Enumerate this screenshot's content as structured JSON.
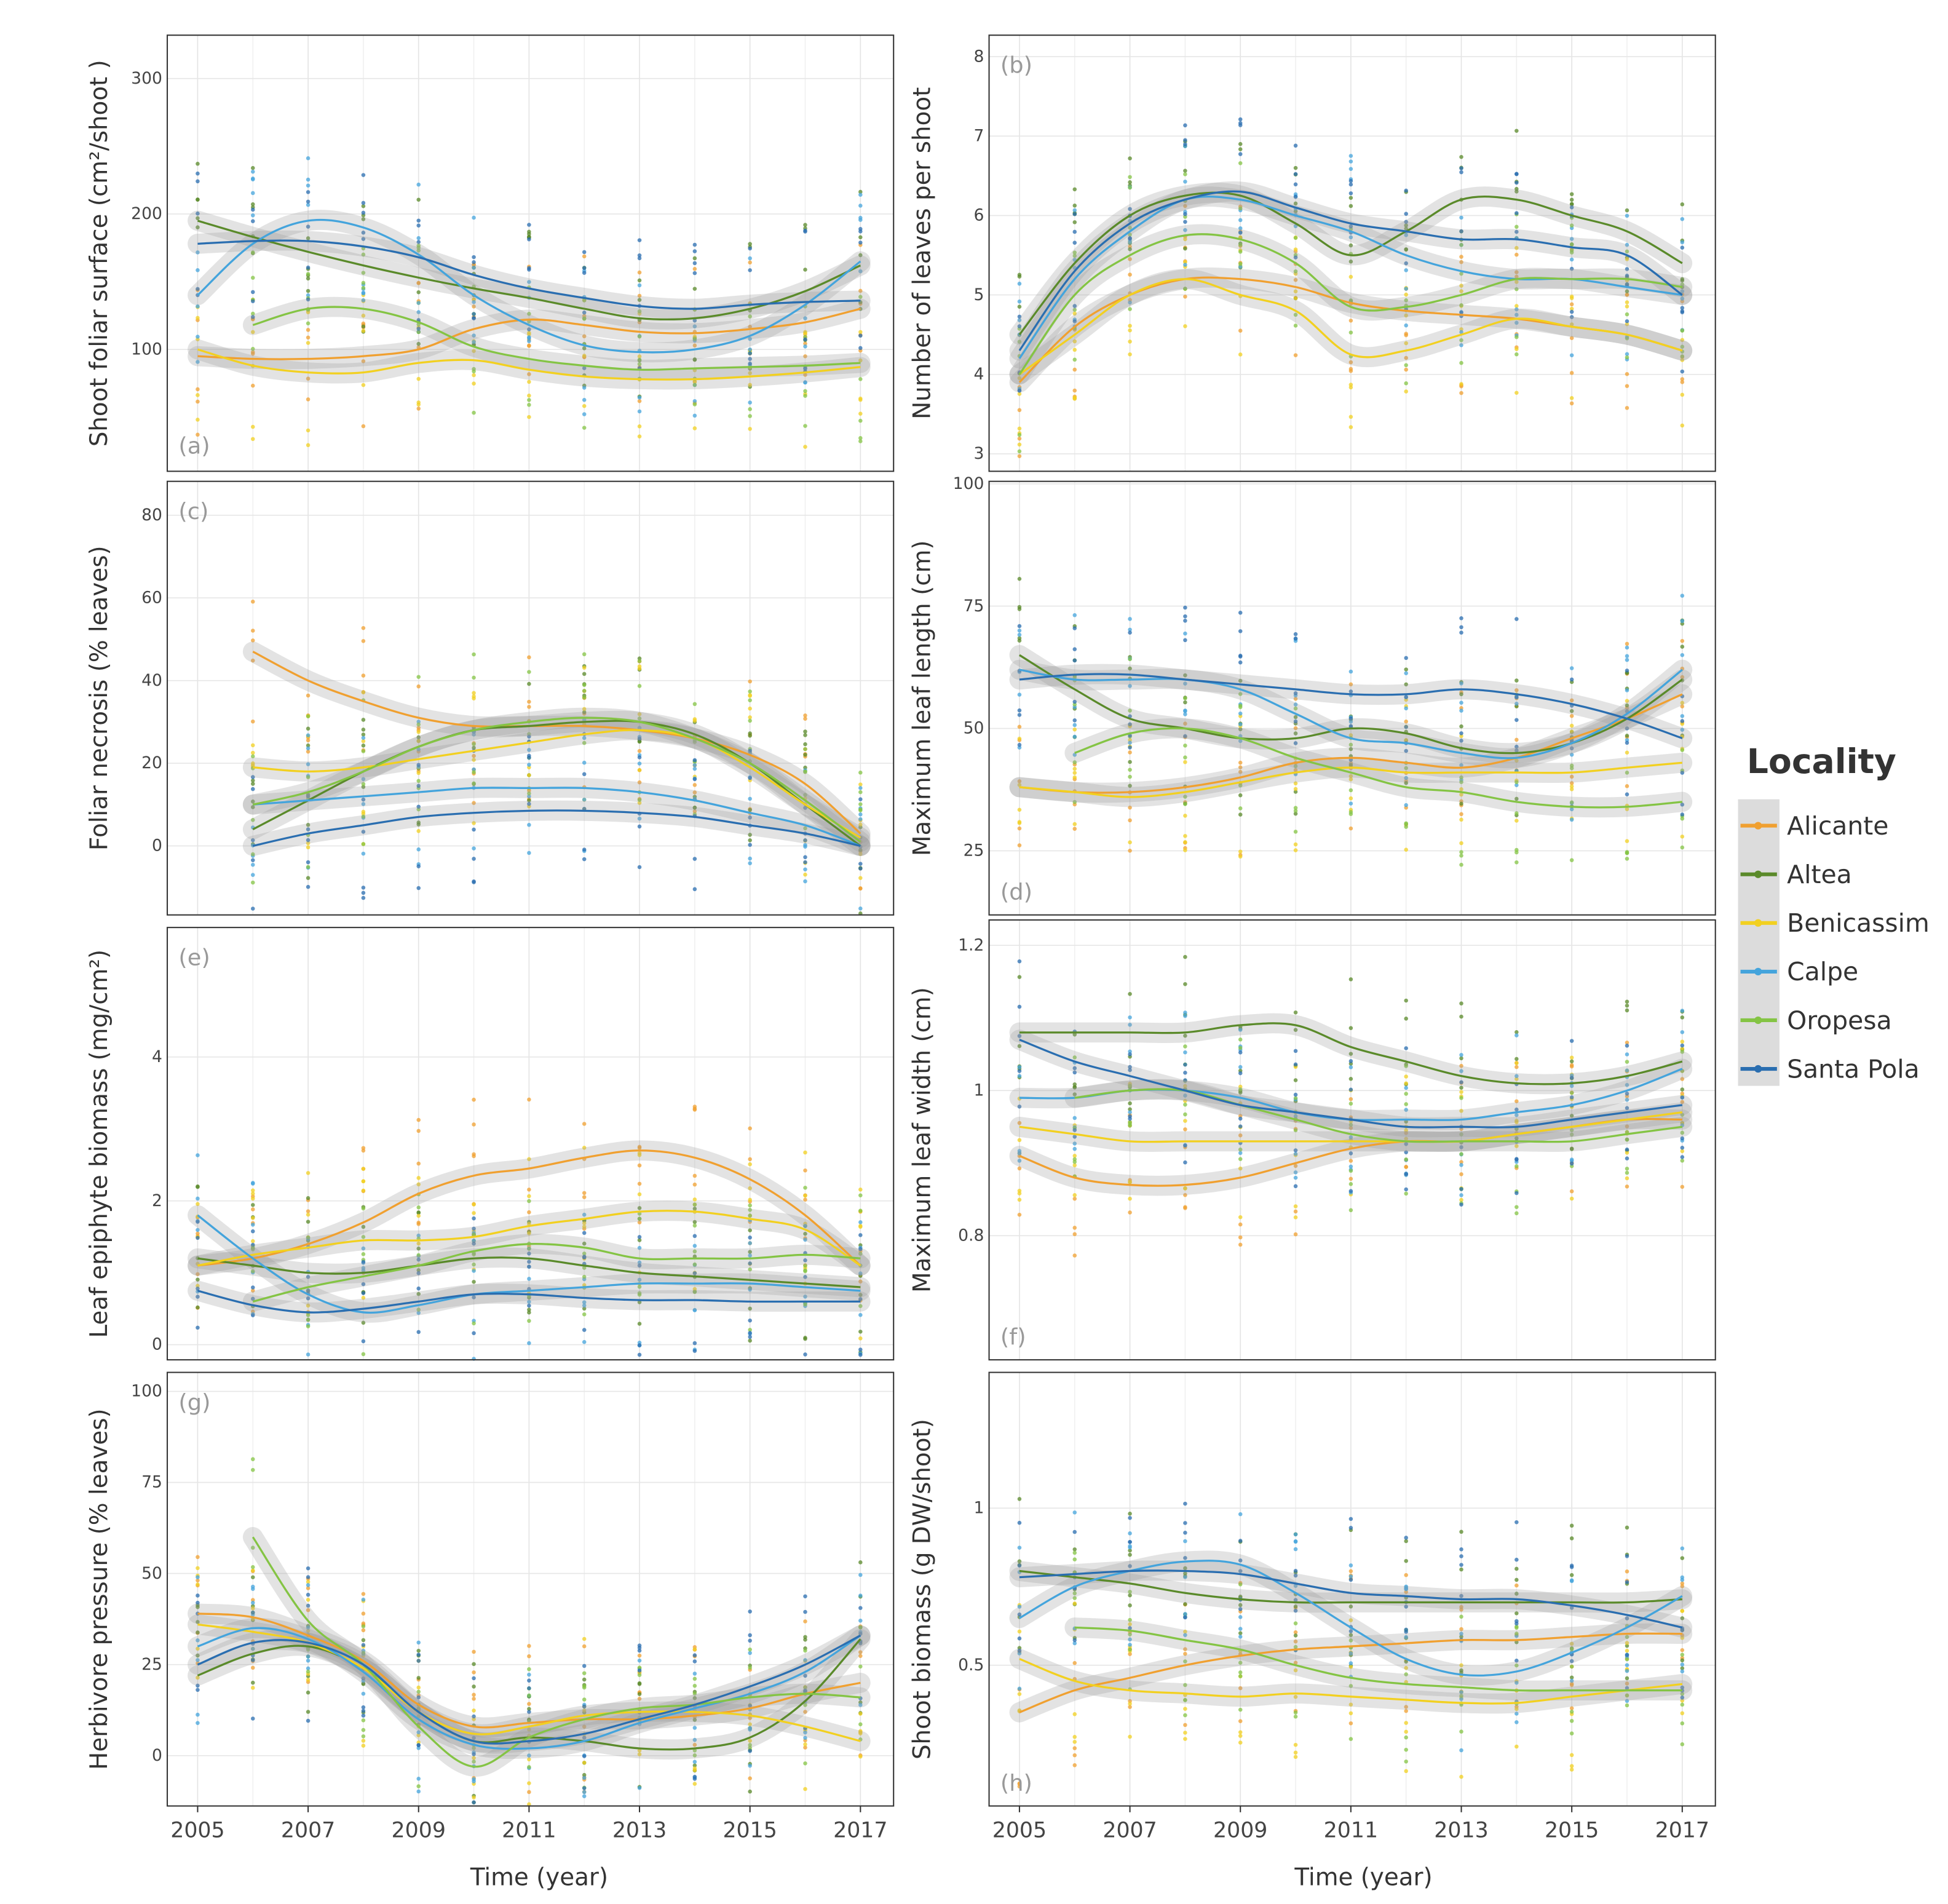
{
  "legend": {
    "title": "Locality",
    "items": [
      {
        "name": "Alicante",
        "color": "#f0a030"
      },
      {
        "name": "Altea",
        "color": "#5a8a2a"
      },
      {
        "name": "Benicassim",
        "color": "#f2d020"
      },
      {
        "name": "Calpe",
        "color": "#44a4dc"
      },
      {
        "name": "Oropesa",
        "color": "#84c444"
      },
      {
        "name": "Santa Pola",
        "color": "#2a6eb0"
      }
    ]
  },
  "xlabel": "Time (year)",
  "xticks": [
    2005,
    2007,
    2009,
    2011,
    2013,
    2015,
    2017
  ],
  "chart_data": [
    {
      "type": "line",
      "tag": "(a)",
      "ylabel": "Shoot foliar surface (cm²/shoot )",
      "ylim": [
        10,
        332
      ],
      "yticks": [
        100,
        200,
        300
      ],
      "xlim": [
        2004.45,
        2017.6
      ],
      "x": [
        2005,
        2006,
        2007,
        2008,
        2009,
        2010,
        2011,
        2012,
        2013,
        2014,
        2015,
        2016,
        2017
      ],
      "series": [
        {
          "name": "Alicante",
          "values": [
            95,
            93,
            93,
            95,
            100,
            115,
            122,
            118,
            113,
            112,
            115,
            120,
            130
          ]
        },
        {
          "name": "Altea",
          "values": [
            195,
            183,
            172,
            162,
            153,
            145,
            138,
            130,
            123,
            123,
            130,
            143,
            162
          ]
        },
        {
          "name": "Benicassim",
          "values": [
            100,
            88,
            83,
            83,
            90,
            92,
            85,
            80,
            78,
            78,
            80,
            83,
            87
          ]
        },
        {
          "name": "Calpe",
          "values": [
            140,
            178,
            195,
            190,
            170,
            140,
            118,
            103,
            98,
            100,
            110,
            133,
            165
          ]
        },
        {
          "name": "Oropesa",
          "values": [
            null,
            118,
            130,
            130,
            120,
            102,
            93,
            88,
            85,
            86,
            87,
            88,
            90
          ]
        },
        {
          "name": "Santa Pola",
          "values": [
            178,
            180,
            180,
            176,
            168,
            155,
            145,
            138,
            132,
            130,
            133,
            135,
            136
          ]
        }
      ]
    },
    {
      "type": "line",
      "tag": "(b)",
      "ylabel": "Number of leaves per shoot",
      "ylim": [
        2.78,
        8.27
      ],
      "yticks": [
        3,
        4,
        5,
        6,
        7,
        8
      ],
      "xlim": [
        2004.45,
        2017.6
      ],
      "x": [
        2005,
        2006,
        2007,
        2008,
        2009,
        2010,
        2011,
        2012,
        2013,
        2014,
        2015,
        2016,
        2017
      ],
      "series": [
        {
          "name": "Alicante",
          "values": [
            3.9,
            4.6,
            5.0,
            5.2,
            5.2,
            5.1,
            4.9,
            4.8,
            4.75,
            4.7,
            4.6,
            4.5,
            4.3
          ]
        },
        {
          "name": "Altea",
          "values": [
            4.5,
            5.4,
            6.0,
            6.25,
            6.25,
            5.9,
            5.5,
            5.8,
            6.2,
            6.2,
            6.0,
            5.8,
            5.4
          ]
        },
        {
          "name": "Benicassim",
          "values": [
            4.0,
            4.5,
            5.0,
            5.2,
            5.0,
            4.8,
            4.25,
            4.3,
            4.5,
            4.7,
            4.6,
            4.5,
            4.3
          ]
        },
        {
          "name": "Calpe",
          "values": [
            4.2,
            5.2,
            5.8,
            6.2,
            6.2,
            6.0,
            5.8,
            5.5,
            5.3,
            5.2,
            5.2,
            5.1,
            5.0
          ]
        },
        {
          "name": "Oropesa",
          "values": [
            4.0,
            5.0,
            5.5,
            5.75,
            5.7,
            5.4,
            4.85,
            4.85,
            5.0,
            5.2,
            5.2,
            5.2,
            5.1
          ]
        },
        {
          "name": "Santa Pola",
          "values": [
            4.3,
            5.3,
            5.9,
            6.2,
            6.3,
            6.1,
            5.9,
            5.8,
            5.7,
            5.7,
            5.6,
            5.5,
            5.0
          ]
        }
      ]
    },
    {
      "type": "line",
      "tag": "(c)",
      "ylabel": "Foliar necrosis (% leaves)",
      "ylim": [
        -16.7,
        88.2
      ],
      "yticks": [
        0,
        20,
        40,
        60,
        80
      ],
      "xlim": [
        2004.45,
        2017.6
      ],
      "x": [
        2005,
        2006,
        2007,
        2008,
        2009,
        2010,
        2011,
        2012,
        2013,
        2014,
        2015,
        2016,
        2017
      ],
      "series": [
        {
          "name": "Alicante",
          "values": [
            null,
            47,
            40,
            35,
            31,
            29,
            29,
            29,
            28,
            26,
            22,
            15,
            3
          ]
        },
        {
          "name": "Altea",
          "values": [
            null,
            4,
            11,
            18,
            24,
            28,
            29,
            30,
            30,
            27,
            20,
            10,
            0
          ]
        },
        {
          "name": "Benicassim",
          "values": [
            null,
            19,
            18,
            19,
            21,
            23,
            25,
            27,
            28,
            26,
            19,
            10,
            2
          ]
        },
        {
          "name": "Calpe",
          "values": [
            null,
            10,
            11,
            12,
            13,
            14,
            14,
            14,
            13,
            11,
            8,
            5,
            0
          ]
        },
        {
          "name": "Oropesa",
          "values": [
            null,
            10,
            13,
            18,
            24,
            28,
            30,
            31,
            30,
            26,
            20,
            11,
            1
          ]
        },
        {
          "name": "Santa Pola",
          "values": [
            null,
            0,
            3,
            5,
            7,
            8,
            8.5,
            8.5,
            8,
            7,
            5,
            3,
            0
          ]
        }
      ]
    },
    {
      "type": "line",
      "tag": "(d)",
      "ylabel": "Maximum leaf  length (cm)",
      "ylim": [
        11.9,
        100.5
      ],
      "yticks": [
        25,
        50,
        75,
        100
      ],
      "xlim": [
        2004.45,
        2017.6
      ],
      "x": [
        2005,
        2006,
        2007,
        2008,
        2009,
        2010,
        2011,
        2012,
        2013,
        2014,
        2015,
        2016,
        2017
      ],
      "series": [
        {
          "name": "Alicante",
          "values": [
            38,
            37,
            37,
            38,
            40,
            43,
            44,
            43,
            42,
            44,
            48,
            52,
            57
          ]
        },
        {
          "name": "Altea",
          "values": [
            65,
            58,
            52,
            50,
            48,
            48,
            50,
            49,
            46,
            45,
            47,
            52,
            60
          ]
        },
        {
          "name": "Benicassim",
          "values": [
            38,
            37,
            36,
            37,
            39,
            41,
            42,
            41,
            41,
            41,
            41,
            42,
            43
          ]
        },
        {
          "name": "Calpe",
          "values": [
            62,
            60,
            60,
            60,
            58,
            53,
            48,
            47,
            45,
            44,
            47,
            53,
            62
          ]
        },
        {
          "name": "Oropesa",
          "values": [
            null,
            45,
            49,
            50,
            48,
            44,
            41,
            38,
            37,
            35,
            34,
            34,
            35
          ]
        },
        {
          "name": "Santa Pola",
          "values": [
            60,
            61,
            61,
            60,
            59,
            58,
            57,
            57,
            58,
            57,
            55,
            52,
            48
          ]
        }
      ]
    },
    {
      "type": "line",
      "tag": "(e)",
      "ylabel": "Leaf epiphyte biomass (mg/cm²)",
      "ylim": [
        -0.21,
        5.8
      ],
      "yticks": [
        0,
        2,
        4
      ],
      "xlim": [
        2004.45,
        2017.6
      ],
      "x": [
        2005,
        2006,
        2007,
        2008,
        2009,
        2010,
        2011,
        2012,
        2013,
        2014,
        2015,
        2016,
        2017
      ],
      "series": [
        {
          "name": "Alicante",
          "values": [
            1.1,
            1.2,
            1.4,
            1.7,
            2.1,
            2.35,
            2.45,
            2.6,
            2.7,
            2.6,
            2.3,
            1.8,
            1.1
          ]
        },
        {
          "name": "Altea",
          "values": [
            1.2,
            1.1,
            1.0,
            1.0,
            1.1,
            1.2,
            1.2,
            1.1,
            1.0,
            0.95,
            0.9,
            0.85,
            0.8
          ]
        },
        {
          "name": "Benicassim",
          "values": [
            1.1,
            1.25,
            1.35,
            1.45,
            1.45,
            1.5,
            1.65,
            1.75,
            1.85,
            1.85,
            1.75,
            1.6,
            1.1
          ]
        },
        {
          "name": "Calpe",
          "values": [
            1.8,
            1.2,
            0.7,
            0.45,
            0.55,
            0.7,
            0.75,
            0.8,
            0.85,
            0.85,
            0.85,
            0.8,
            0.75
          ]
        },
        {
          "name": "Oropesa",
          "values": [
            null,
            0.6,
            0.8,
            0.95,
            1.1,
            1.3,
            1.4,
            1.35,
            1.2,
            1.2,
            1.2,
            1.25,
            1.2
          ]
        },
        {
          "name": "Santa Pola",
          "values": [
            0.75,
            0.55,
            0.45,
            0.5,
            0.6,
            0.7,
            0.7,
            0.65,
            0.62,
            0.62,
            0.6,
            0.6,
            0.6
          ]
        }
      ]
    },
    {
      "type": "line",
      "tag": "(f)",
      "ylabel": "Maximum leaf width (cm)",
      "ylim": [
        0.629,
        1.235
      ],
      "yticks": [
        0.8,
        1.0,
        1.2
      ],
      "xlim": [
        2004.45,
        2017.6
      ],
      "x": [
        2005,
        2006,
        2007,
        2008,
        2009,
        2010,
        2011,
        2012,
        2013,
        2014,
        2015,
        2016,
        2017
      ],
      "series": [
        {
          "name": "Alicante",
          "values": [
            0.91,
            0.88,
            0.87,
            0.87,
            0.88,
            0.9,
            0.92,
            0.93,
            0.93,
            0.94,
            0.95,
            0.96,
            0.96
          ]
        },
        {
          "name": "Altea",
          "values": [
            1.08,
            1.08,
            1.08,
            1.08,
            1.09,
            1.09,
            1.06,
            1.04,
            1.02,
            1.01,
            1.01,
            1.02,
            1.04
          ]
        },
        {
          "name": "Benicassim",
          "values": [
            0.95,
            0.94,
            0.93,
            0.93,
            0.93,
            0.93,
            0.93,
            0.93,
            0.93,
            0.94,
            0.95,
            0.96,
            0.97
          ]
        },
        {
          "name": "Calpe",
          "values": [
            0.99,
            0.99,
            1.0,
            1.0,
            0.99,
            0.97,
            0.96,
            0.96,
            0.96,
            0.97,
            0.98,
            1.0,
            1.03
          ]
        },
        {
          "name": "Oropesa",
          "values": [
            null,
            0.99,
            1.0,
            1.0,
            0.98,
            0.96,
            0.94,
            0.93,
            0.93,
            0.93,
            0.93,
            0.94,
            0.95
          ]
        },
        {
          "name": "Santa Pola",
          "values": [
            1.07,
            1.04,
            1.02,
            1.0,
            0.98,
            0.97,
            0.96,
            0.95,
            0.95,
            0.95,
            0.96,
            0.97,
            0.98
          ]
        }
      ]
    },
    {
      "type": "line",
      "tag": "(g)",
      "ylabel": "Herbivore pressure (% leaves)",
      "ylim": [
        -13.8,
        105.2
      ],
      "yticks": [
        0,
        25,
        50,
        75,
        100
      ],
      "xlim": [
        2004.45,
        2017.6
      ],
      "x": [
        2005,
        2006,
        2007,
        2008,
        2009,
        2010,
        2011,
        2012,
        2013,
        2014,
        2015,
        2016,
        2017
      ],
      "series": [
        {
          "name": "Alicante",
          "values": [
            39,
            38,
            33,
            26,
            14,
            8,
            9,
            10,
            10,
            11,
            13,
            17,
            20
          ]
        },
        {
          "name": "Altea",
          "values": [
            22,
            28,
            30,
            24,
            12,
            4,
            5,
            4,
            2,
            2,
            5,
            15,
            32
          ]
        },
        {
          "name": "Benicassim",
          "values": [
            36,
            34,
            31,
            24,
            12,
            6,
            8,
            11,
            12,
            12,
            11,
            8,
            4
          ]
        },
        {
          "name": "Calpe",
          "values": [
            30,
            35,
            32,
            23,
            10,
            3,
            2,
            4,
            9,
            13,
            17,
            23,
            33
          ]
        },
        {
          "name": "Oropesa",
          "values": [
            null,
            60,
            37,
            25,
            8,
            -3,
            5,
            10,
            13,
            14,
            16,
            17,
            16
          ]
        },
        {
          "name": "Santa Pola",
          "values": [
            25,
            31,
            31,
            25,
            12,
            4,
            4,
            6,
            10,
            14,
            19,
            25,
            33
          ]
        }
      ]
    },
    {
      "type": "line",
      "tag": "(h)",
      "ylabel": "Shoot biomass (g DW/shoot)",
      "ylim": [
        0.052,
        1.432
      ],
      "yticks": [
        0.5,
        1.0
      ],
      "xlim": [
        2004.45,
        2017.6
      ],
      "x": [
        2005,
        2006,
        2007,
        2008,
        2009,
        2010,
        2011,
        2012,
        2013,
        2014,
        2015,
        2016,
        2017
      ],
      "series": [
        {
          "name": "Alicante",
          "values": [
            0.35,
            0.42,
            0.46,
            0.5,
            0.53,
            0.55,
            0.56,
            0.57,
            0.58,
            0.58,
            0.59,
            0.6,
            0.6
          ]
        },
        {
          "name": "Altea",
          "values": [
            0.8,
            0.78,
            0.76,
            0.73,
            0.71,
            0.7,
            0.7,
            0.7,
            0.7,
            0.7,
            0.7,
            0.7,
            0.71
          ]
        },
        {
          "name": "Benicassim",
          "values": [
            0.52,
            0.45,
            0.42,
            0.41,
            0.4,
            0.41,
            0.4,
            0.39,
            0.38,
            0.38,
            0.4,
            0.42,
            0.44
          ]
        },
        {
          "name": "Calpe",
          "values": [
            0.65,
            0.75,
            0.8,
            0.83,
            0.82,
            0.73,
            0.62,
            0.52,
            0.47,
            0.48,
            0.54,
            0.62,
            0.72
          ]
        },
        {
          "name": "Oropesa",
          "values": [
            null,
            0.62,
            0.61,
            0.58,
            0.55,
            0.5,
            0.46,
            0.44,
            0.43,
            0.42,
            0.42,
            0.42,
            0.42
          ]
        },
        {
          "name": "Santa Pola",
          "values": [
            0.78,
            0.79,
            0.8,
            0.8,
            0.79,
            0.76,
            0.73,
            0.72,
            0.71,
            0.71,
            0.69,
            0.66,
            0.62
          ]
        }
      ]
    }
  ]
}
